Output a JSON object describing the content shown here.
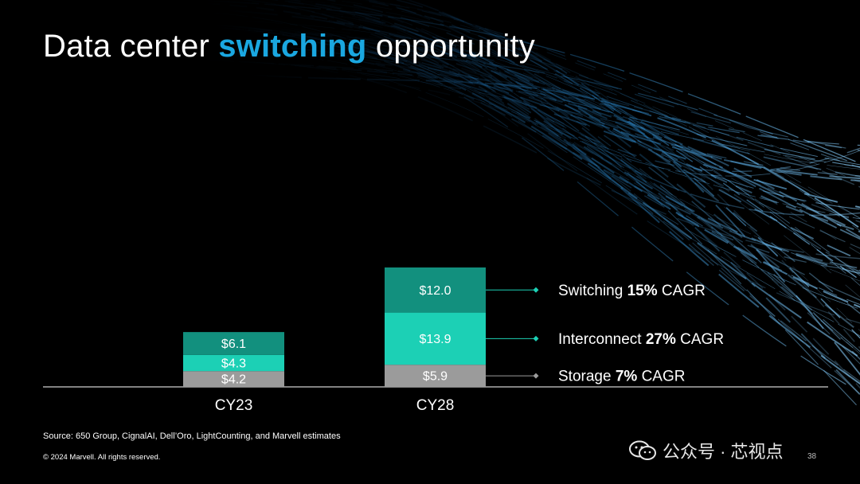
{
  "title": {
    "part1": "Data center ",
    "highlight": "switching",
    "part2": " opportunity"
  },
  "colors": {
    "switching": "#12907e",
    "interconnect": "#1cd0b5",
    "storage": "#9b9b9b",
    "accent": "#1aa7e0",
    "background": "#000000"
  },
  "chart_data": {
    "type": "bar",
    "stacked": true,
    "categories": [
      "CY23",
      "CY28"
    ],
    "series": [
      {
        "name": "Storage",
        "values": [
          4.2,
          5.9
        ],
        "labels": [
          "$4.2",
          "$5.9"
        ],
        "color": "#9b9b9b"
      },
      {
        "name": "Interconnect",
        "values": [
          4.3,
          13.9
        ],
        "labels": [
          "$4.3",
          "$13.9"
        ],
        "color": "#1cd0b5"
      },
      {
        "name": "Switching",
        "values": [
          6.1,
          12.0
        ],
        "labels": [
          "$6.1",
          "$12.0"
        ],
        "color": "#12907e"
      }
    ],
    "annotations": [
      {
        "series": "Switching",
        "prefix": "Switching ",
        "bold": "15%",
        "suffix": " CAGR",
        "marker_color": "#1cd0b5"
      },
      {
        "series": "Interconnect",
        "prefix": "Interconnect ",
        "bold": "27%",
        "suffix": " CAGR",
        "marker_color": "#1cd0b5"
      },
      {
        "series": "Storage",
        "prefix": "Storage ",
        "bold": "7%",
        "suffix": " CAGR",
        "marker_color": "#9b9b9b"
      }
    ],
    "ylim": [
      0,
      31.8
    ],
    "grid": false,
    "xlabel": "",
    "ylabel": ""
  },
  "footer": {
    "source": "Source: 650 Group, CignalAI, Dell’Oro, LightCounting, and Marvell estimates",
    "copyright": "© 2024 Marvell. All rights reserved.",
    "page": "38"
  },
  "watermark": {
    "text": "公众号 · 芯视点",
    "icon": "wechat-icon"
  }
}
